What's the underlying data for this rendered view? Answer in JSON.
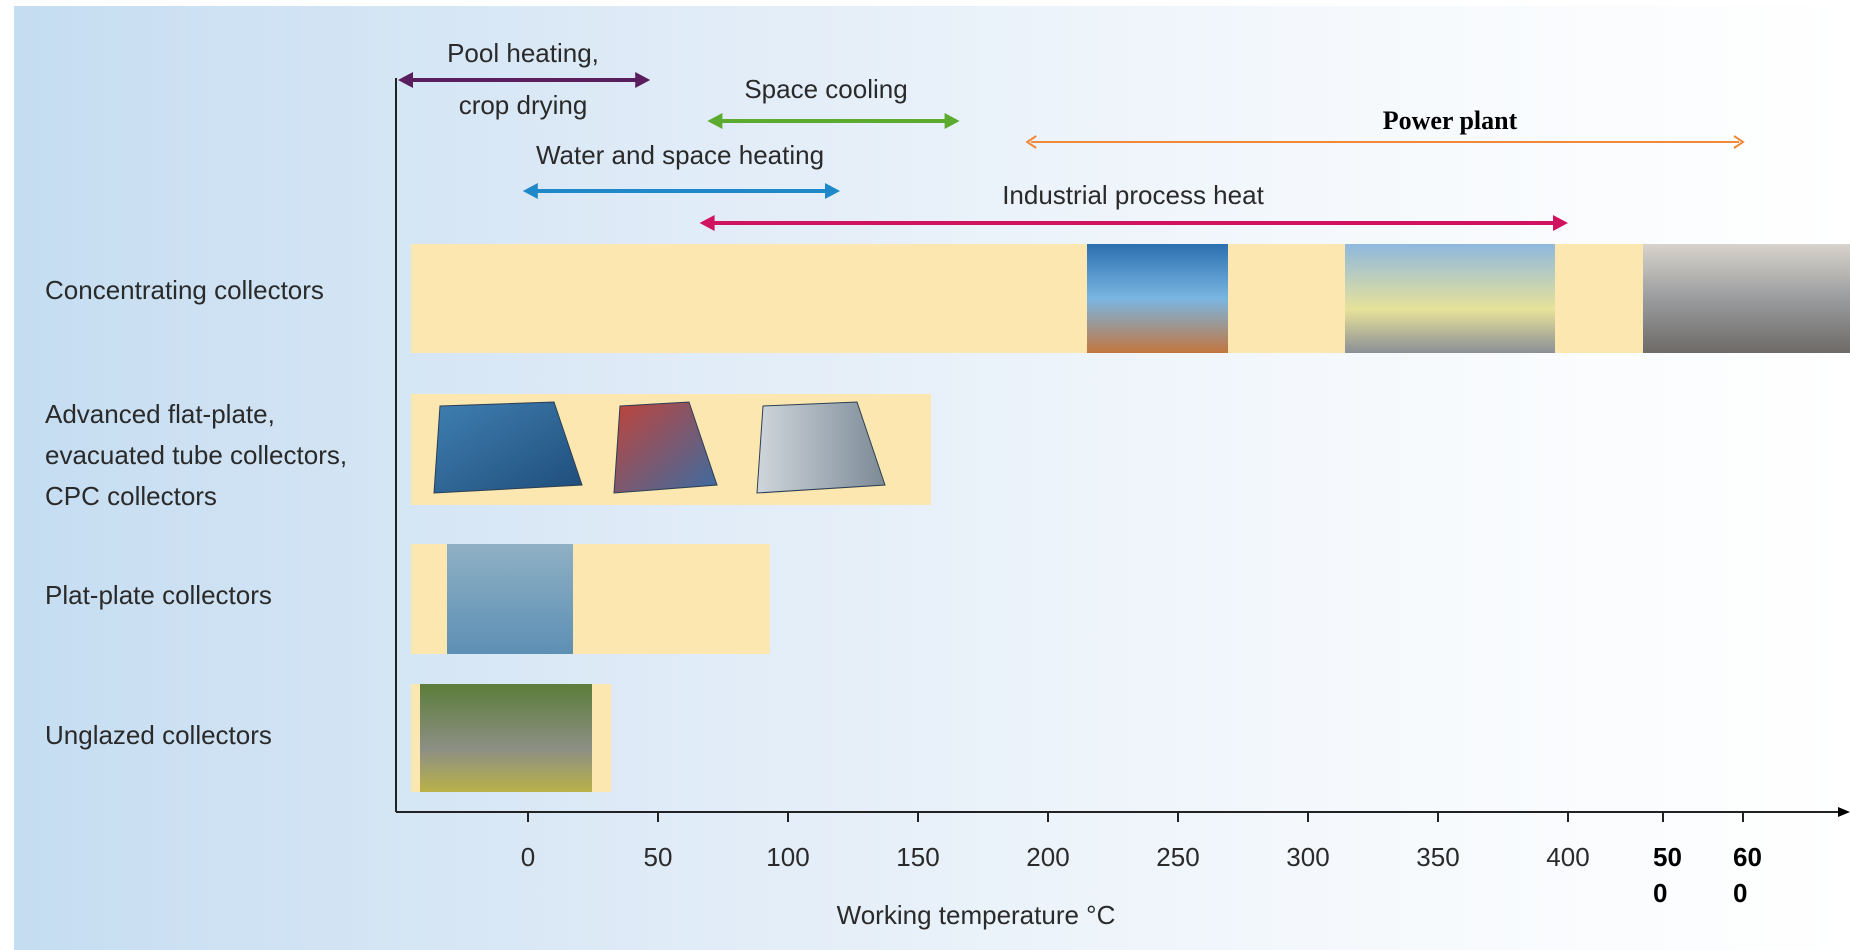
{
  "chart_data": {
    "type": "range-bar",
    "xlabel": "Working temperature °C",
    "x_ticks": [
      {
        "value": 0,
        "label": "0"
      },
      {
        "value": 50,
        "label": "50"
      },
      {
        "value": 100,
        "label": "100"
      },
      {
        "value": 150,
        "label": "150"
      },
      {
        "value": 200,
        "label": "200"
      },
      {
        "value": 250,
        "label": "250"
      },
      {
        "value": 300,
        "label": "300"
      },
      {
        "value": 350,
        "label": "350"
      },
      {
        "value": 400,
        "label": "400"
      },
      {
        "value": 500,
        "label": "50\n0"
      },
      {
        "value": 600,
        "label": "60\n0"
      }
    ],
    "categories": [
      {
        "label": "Concentrating collectors",
        "x_start": -45,
        "x_end": 600,
        "photos": 3
      },
      {
        "label": "Advanced flat-plate,\nevacuated tube collectors,\nCPC collectors",
        "x_start": -45,
        "x_end": 155,
        "photos": 3
      },
      {
        "label": "Plat-plate collectors",
        "x_start": -45,
        "x_end": 93,
        "photos": 1
      },
      {
        "label": "Unglazed collectors",
        "x_start": -45,
        "x_end": 32,
        "photos": 1
      }
    ],
    "applications": [
      {
        "label": "Pool heating,\ncrop drying",
        "x_start": -50,
        "x_end": 47,
        "color": "#5a1e5e",
        "bold": false
      },
      {
        "label": "Space cooling",
        "x_start": 69,
        "x_end": 166,
        "color": "#5aab2e",
        "bold": false
      },
      {
        "label": "Power plant",
        "x_start": 192,
        "x_end": 600,
        "color": "#f0893a",
        "bold": true
      },
      {
        "label": "Water and space heating",
        "x_start": -2,
        "x_end": 120,
        "color": "#1e88c8",
        "bold": false
      },
      {
        "label": "Industrial process heat",
        "x_start": 66,
        "x_end": 400,
        "color": "#d0135f",
        "bold": false
      }
    ],
    "bar_color": "#fde7b0",
    "grid": false
  }
}
